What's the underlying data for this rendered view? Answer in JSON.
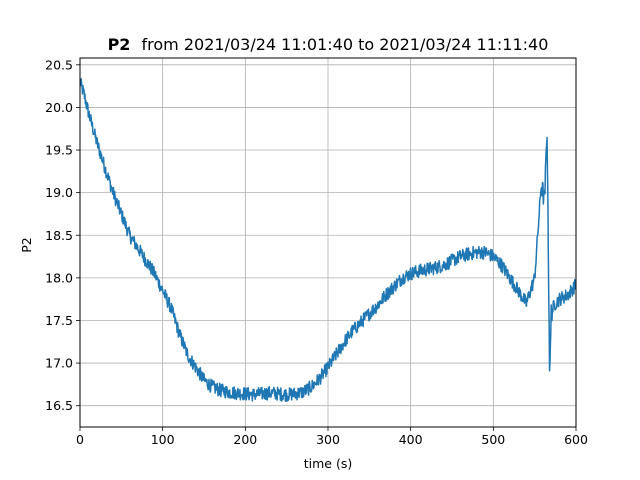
{
  "chart_data": {
    "type": "line",
    "title_bold": "P2",
    "title_rest": "from 2021/03/24 11:01:40 to 2021/03/24 11:11:40",
    "xlabel": "time (s)",
    "ylabel": "P2",
    "xlim": [
      0,
      600
    ],
    "ylim": [
      16.25,
      20.58
    ],
    "xticks": [
      0,
      100,
      200,
      300,
      400,
      500,
      600
    ],
    "yticks": [
      16.5,
      17.0,
      17.5,
      18.0,
      18.5,
      19.0,
      19.5,
      20.0,
      20.5
    ],
    "ytick_labels": [
      "16.5",
      "17.0",
      "17.5",
      "18.0",
      "18.5",
      "19.0",
      "19.5",
      "20.0",
      "20.5"
    ],
    "grid": true,
    "line_color": "#1f77b4",
    "noise_amplitude": 0.08,
    "series": [
      {
        "x": [
          0,
          5,
          10,
          20,
          30,
          40,
          50,
          60,
          70,
          80,
          90,
          100,
          110,
          120,
          130,
          140,
          150,
          160,
          170,
          180,
          190,
          200,
          210,
          220,
          230,
          240,
          250,
          260,
          270,
          280,
          290,
          300,
          310,
          320,
          330,
          340,
          350,
          360,
          370,
          380,
          390,
          400,
          410,
          420,
          430,
          440,
          450,
          460,
          470,
          480,
          490,
          500,
          510,
          520,
          530,
          540,
          550,
          558,
          562,
          565,
          568,
          569,
          570,
          575,
          580,
          590,
          600
        ],
        "y": [
          20.3,
          20.15,
          19.95,
          19.6,
          19.3,
          19.0,
          18.75,
          18.5,
          18.35,
          18.2,
          18.05,
          17.85,
          17.65,
          17.35,
          17.1,
          16.95,
          16.8,
          16.72,
          16.68,
          16.66,
          16.65,
          16.64,
          16.63,
          16.64,
          16.65,
          16.64,
          16.63,
          16.64,
          16.66,
          16.72,
          16.82,
          16.95,
          17.1,
          17.25,
          17.38,
          17.48,
          17.58,
          17.68,
          17.8,
          17.9,
          18.0,
          18.05,
          18.08,
          18.1,
          18.12,
          18.15,
          18.2,
          18.25,
          18.28,
          18.3,
          18.3,
          18.25,
          18.15,
          18.0,
          17.85,
          17.7,
          18.0,
          19.1,
          18.9,
          19.75,
          17.0,
          17.1,
          17.6,
          17.7,
          17.75,
          17.8,
          17.92
        ]
      }
    ]
  }
}
